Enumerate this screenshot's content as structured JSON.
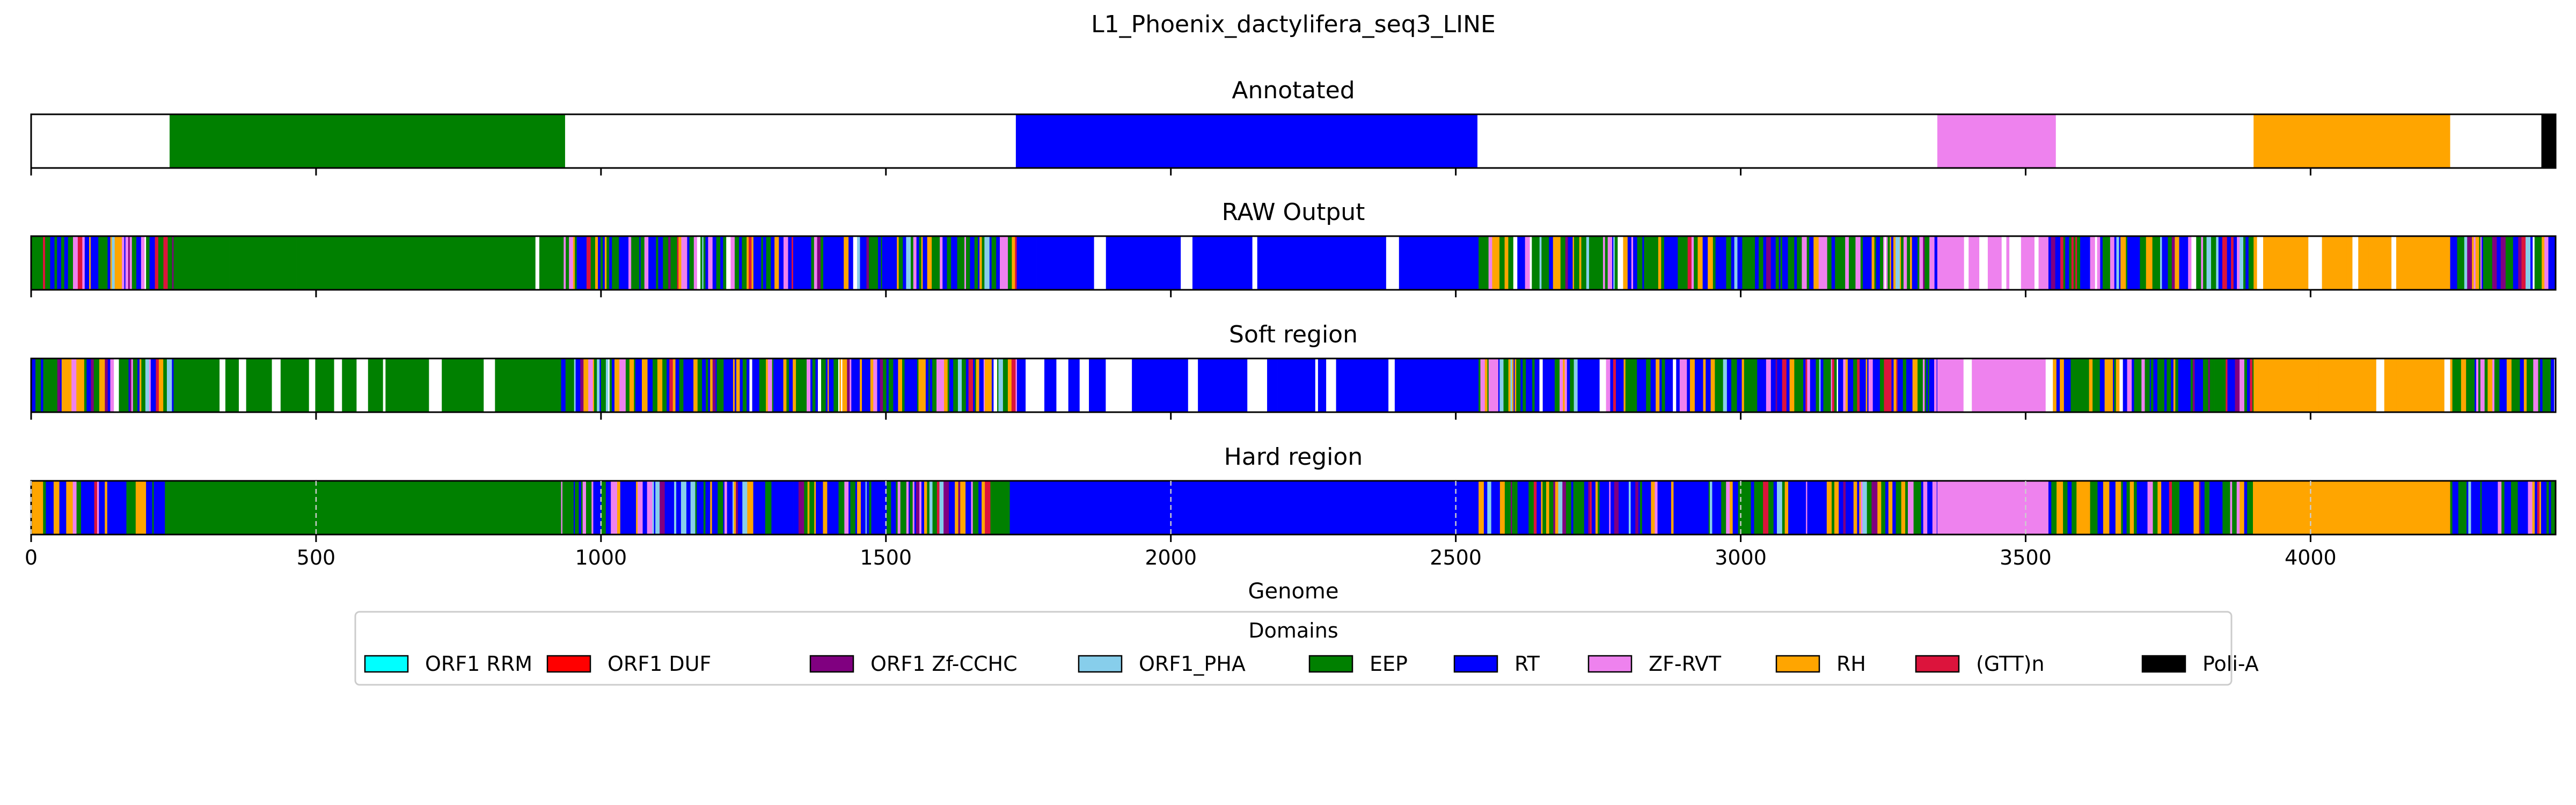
{
  "chart_data": {
    "type": "bar",
    "title": "L1_Phoenix_dactylifera_seq3_LINE",
    "xlabel": "Genome",
    "xlim": [
      0,
      4430
    ],
    "xticks": [
      0,
      500,
      1000,
      1500,
      2000,
      2500,
      3000,
      3500,
      4000
    ],
    "grid": "vertical dashed (Hard region only)",
    "legend": {
      "title": "Domains",
      "placement": "bottom-center",
      "entries": [
        {
          "name": "ORF1 RRM",
          "color": "#00ffff"
        },
        {
          "name": "ORF1 DUF",
          "color": "#ff0000"
        },
        {
          "name": "ORF1 Zf-CCHC",
          "color": "#800080"
        },
        {
          "name": "ORF1_PHA",
          "color": "#87ceeb"
        },
        {
          "name": "EEP",
          "color": "#008000"
        },
        {
          "name": "RT",
          "color": "#0000ff"
        },
        {
          "name": "ZF-RVT",
          "color": "#ee82ee"
        },
        {
          "name": "RH",
          "color": "#ffa500"
        },
        {
          "name": "(GTT)n",
          "color": "#dc143c"
        },
        {
          "name": "Poli-A",
          "color": "#000000"
        }
      ]
    },
    "tracks": [
      {
        "name": "Annotated",
        "segments": [
          {
            "domain": "EEP",
            "start": 243,
            "end": 937
          },
          {
            "domain": "RT",
            "start": 1728,
            "end": 2538
          },
          {
            "domain": "ZF-RVT",
            "start": 3345,
            "end": 3553
          },
          {
            "domain": "RH",
            "start": 3900,
            "end": 4245
          },
          {
            "domain": "Poli-A",
            "start": 4405,
            "end": 4430
          }
        ]
      },
      {
        "name": "RAW Output",
        "pattern": "noisy",
        "base_regions": [
          {
            "domain": "EEP",
            "start": 250,
            "end": 930
          },
          {
            "domain": "RT",
            "start": 1730,
            "end": 2540
          },
          {
            "domain": "ZF-RVT",
            "start": 3345,
            "end": 3540
          },
          {
            "domain": "RH",
            "start": 3900,
            "end": 4245
          }
        ]
      },
      {
        "name": "Soft region",
        "pattern": "noisy",
        "base_regions": [
          {
            "domain": "EEP",
            "start": 250,
            "end": 930
          },
          {
            "domain": "RT",
            "start": 1730,
            "end": 2540
          },
          {
            "domain": "ZF-RVT",
            "start": 3345,
            "end": 3540
          },
          {
            "domain": "RH",
            "start": 3900,
            "end": 4245
          }
        ]
      },
      {
        "name": "Hard region",
        "pattern": "solid-blocks",
        "base_regions": [
          {
            "domain": "EEP",
            "start": 245,
            "end": 930
          },
          {
            "domain": "RT",
            "start": 1730,
            "end": 2540
          },
          {
            "domain": "ZF-RVT",
            "start": 3345,
            "end": 3540
          },
          {
            "domain": "RH",
            "start": 3900,
            "end": 4245
          }
        ]
      }
    ]
  }
}
